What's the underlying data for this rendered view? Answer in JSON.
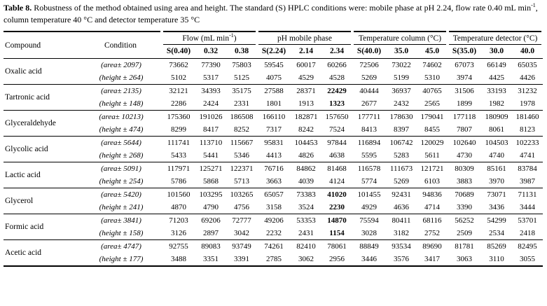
{
  "caption": {
    "label": "Table 8.",
    "text_main": " Robustness of the method obtained using area and height. The standard (S) HPLC conditions were: mobile phase at pH 2.24, flow rate 0.40 mL min",
    "unit_sup": "-1",
    "text_tail": ", column temperature 40 °C and detector temperature 35 °C"
  },
  "table": {
    "header": {
      "compound": "Compound",
      "condition": "Condition"
    },
    "groups": [
      {
        "label_pre": "Flow (mL min",
        "label_sup": "-1",
        "label_post": ")",
        "subcols": [
          "S(0.40)",
          "0.32",
          "0.38"
        ]
      },
      {
        "label_pre": "pH mobile phase",
        "label_sup": "",
        "label_post": "",
        "subcols": [
          "S(2.24)",
          "2.14",
          "2.34"
        ]
      },
      {
        "label_pre": "Temperature column (°C)",
        "label_sup": "",
        "label_post": "",
        "subcols": [
          "S(40.0)",
          "35.0",
          "45.0"
        ]
      },
      {
        "label_pre": "Temperature detector (°C)",
        "label_sup": "",
        "label_post": "",
        "subcols": [
          "S(35.0)",
          "30.0",
          "40.0"
        ]
      }
    ],
    "compounds": [
      {
        "name": "Oxalic acid",
        "area_label": "(area± 2097)",
        "height_label": "(height ± 264)",
        "area": [
          73662,
          77390,
          75803,
          59545,
          60017,
          60266,
          72506,
          73022,
          74602,
          67073,
          66149,
          65035
        ],
        "height": [
          5102,
          5317,
          5125,
          4075,
          4529,
          4528,
          5269,
          5199,
          5310,
          3974,
          4425,
          4426
        ],
        "bold_cols": []
      },
      {
        "name": "Tartronic acid",
        "area_label": "(area± 2135)",
        "height_label": "(height ± 148)",
        "area": [
          32121,
          34393,
          35175,
          27588,
          28371,
          22429,
          40444,
          36937,
          40765,
          31506,
          33193,
          31232
        ],
        "height": [
          2286,
          2424,
          2331,
          1801,
          1913,
          1323,
          2677,
          2432,
          2565,
          1899,
          1982,
          1978
        ],
        "bold_cols": [
          5
        ]
      },
      {
        "name": "Glyceraldehyde",
        "area_label": "(area± 10213)",
        "height_label": "(height ± 474)",
        "area": [
          175360,
          191026,
          186508,
          166110,
          182871,
          157650,
          177711,
          178630,
          179041,
          177118,
          180909,
          181460
        ],
        "height": [
          8299,
          8417,
          8252,
          7317,
          8242,
          7524,
          8413,
          8397,
          8455,
          7807,
          8061,
          8123
        ],
        "bold_cols": []
      },
      {
        "name": "Glycolic acid",
        "area_label": "(area± 5644)",
        "height_label": "(height ± 268)",
        "area": [
          111741,
          113710,
          115667,
          95831,
          104453,
          97844,
          116894,
          106742,
          120029,
          102640,
          104503,
          102233
        ],
        "height": [
          5433,
          5441,
          5346,
          4413,
          4826,
          4638,
          5595,
          5283,
          5611,
          4730,
          4740,
          4741
        ],
        "bold_cols": []
      },
      {
        "name": "Lactic acid",
        "area_label": "(area± 5091)",
        "height_label": "(height ± 254)",
        "area": [
          117971,
          125271,
          122371,
          76716,
          84862,
          81468,
          116578,
          111673,
          121721,
          80309,
          85161,
          83784
        ],
        "height": [
          5786,
          5868,
          5713,
          3663,
          4039,
          4124,
          5774,
          5269,
          6103,
          3883,
          3970,
          3987
        ],
        "bold_cols": []
      },
      {
        "name": "Glycerol",
        "area_label": "(area± 5420)",
        "height_label": "(height ± 241)",
        "area": [
          101560,
          103295,
          103265,
          65057,
          73383,
          41020,
          101455,
          92431,
          94836,
          70689,
          73071,
          71131
        ],
        "height": [
          4870,
          4790,
          4756,
          3158,
          3524,
          2230,
          4929,
          4636,
          4714,
          3390,
          3436,
          3444
        ],
        "bold_cols": [
          5
        ]
      },
      {
        "name": "Formic acid",
        "area_label": "(area± 3841)",
        "height_label": "(height ± 158)",
        "area": [
          71203,
          69206,
          72777,
          49206,
          53353,
          14870,
          75594,
          80411,
          68116,
          56252,
          54299,
          53701
        ],
        "height": [
          3126,
          2897,
          3042,
          2232,
          2431,
          1154,
          3028,
          3182,
          2752,
          2509,
          2534,
          2418
        ],
        "bold_cols": [
          5
        ]
      },
      {
        "name": "Acetic acid",
        "area_label": "(area± 4747)",
        "height_label": "(height ± 177)",
        "area": [
          92755,
          89083,
          93749,
          74261,
          82410,
          78061,
          88849,
          93534,
          89690,
          81781,
          85269,
          82495
        ],
        "height": [
          3488,
          3351,
          3391,
          2785,
          3062,
          2956,
          3446,
          3576,
          3417,
          3063,
          3110,
          3055
        ],
        "bold_cols": []
      }
    ]
  }
}
